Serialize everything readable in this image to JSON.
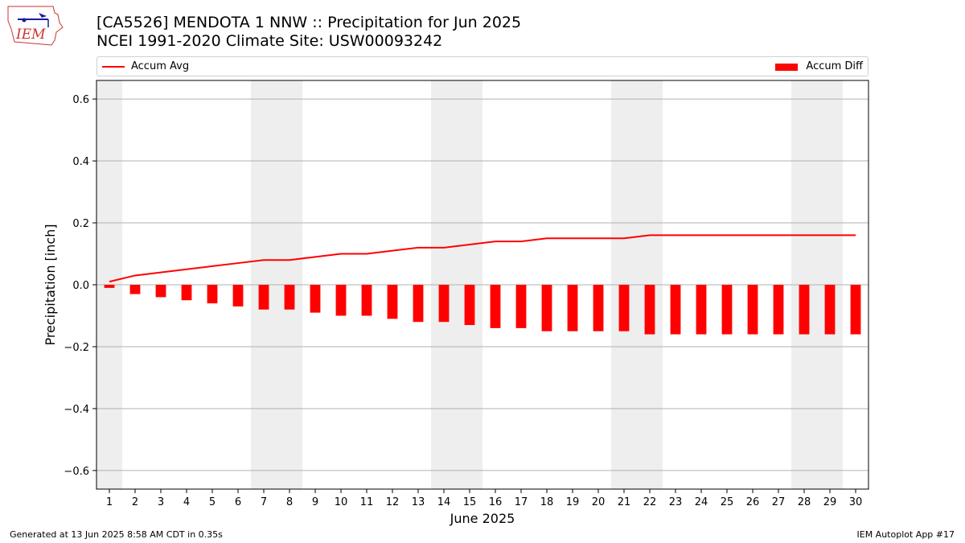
{
  "header": {
    "title_line1": "[CA5526] MENDOTA 1 NNW :: Precipitation for Jun 2025",
    "title_line2": "NCEI 1991-2020 Climate Site: USW00093242",
    "logo_text": "IEM"
  },
  "legend": {
    "line_label": "Accum Avg",
    "bar_label": "Accum Diff"
  },
  "footer": {
    "left": "Generated at 13 Jun 2025 8:58 AM CDT in 0.35s",
    "right": "IEM Autoplot App #17"
  },
  "colors": {
    "series": "#ff0000",
    "weekend_shade": "#eeeeee",
    "grid": "#b0b0b0"
  },
  "chart_data": {
    "type": "bar",
    "xlabel": "June 2025",
    "ylabel": "Precipitation [inch]",
    "ylim": [
      -0.66,
      0.66
    ],
    "yticks": [
      -0.6,
      -0.4,
      -0.2,
      0.0,
      0.2,
      0.4,
      0.6
    ],
    "ytick_labels": [
      "−0.6",
      "−0.4",
      "−0.2",
      "0.0",
      "0.2",
      "0.4",
      "0.6"
    ],
    "grid": "horizontal",
    "legend_placement": "top",
    "x": [
      1,
      2,
      3,
      4,
      5,
      6,
      7,
      8,
      9,
      10,
      11,
      12,
      13,
      14,
      15,
      16,
      17,
      18,
      19,
      20,
      21,
      22,
      23,
      24,
      25,
      26,
      27,
      28,
      29,
      30
    ],
    "shaded_days": [
      [
        1,
        1
      ],
      [
        7,
        8
      ],
      [
        14,
        15
      ],
      [
        21,
        22
      ],
      [
        28,
        29
      ]
    ],
    "series": [
      {
        "name": "Accum Avg",
        "type": "line",
        "values": [
          0.01,
          0.03,
          0.04,
          0.05,
          0.06,
          0.07,
          0.08,
          0.08,
          0.09,
          0.1,
          0.1,
          0.11,
          0.12,
          0.12,
          0.13,
          0.14,
          0.14,
          0.15,
          0.15,
          0.15,
          0.15,
          0.16,
          0.16,
          0.16,
          0.16,
          0.16,
          0.16,
          0.16,
          0.16,
          0.16
        ]
      },
      {
        "name": "Accum Diff",
        "type": "bar",
        "values": [
          -0.01,
          -0.03,
          -0.04,
          -0.05,
          -0.06,
          -0.07,
          -0.08,
          -0.08,
          -0.09,
          -0.1,
          -0.1,
          -0.11,
          -0.12,
          -0.12,
          -0.13,
          -0.14,
          -0.14,
          -0.15,
          -0.15,
          -0.15,
          -0.15,
          -0.16,
          -0.16,
          -0.16,
          -0.16,
          -0.16,
          -0.16,
          -0.16,
          -0.16,
          -0.16
        ]
      }
    ]
  }
}
